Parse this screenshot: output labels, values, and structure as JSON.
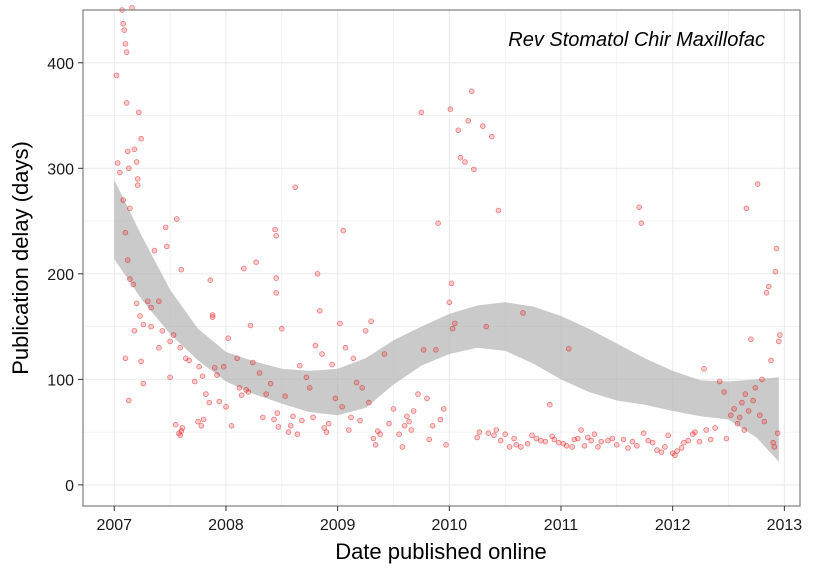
{
  "chart_data": {
    "type": "scatter",
    "title": "",
    "xlabel": "Date published online",
    "ylabel": "Publication delay (days)",
    "annotation": "Rev Stomatol Chir Maxillofac",
    "x_ticks": [
      "2007",
      "2008",
      "2009",
      "2010",
      "2011",
      "2012",
      "2013"
    ],
    "y_ticks": [
      "0",
      "100",
      "200",
      "300",
      "400"
    ],
    "xlim": [
      2006.72,
      2013.14
    ],
    "ylim": [
      -20,
      450
    ],
    "grid": true,
    "legend": "none",
    "colors": {
      "points": "#e41a1c",
      "band": "#b3b3b3",
      "panel_border": "#7f7f7f",
      "grid": "#ebebeb"
    },
    "points": [
      [
        2007.02,
        388
      ],
      [
        2007.03,
        305
      ],
      [
        2007.05,
        296
      ],
      [
        2007.07,
        450
      ],
      [
        2007.08,
        437
      ],
      [
        2007.09,
        431
      ],
      [
        2007.1,
        418
      ],
      [
        2007.11,
        410
      ],
      [
        2007.11,
        362
      ],
      [
        2007.12,
        316
      ],
      [
        2007.13,
        300
      ],
      [
        2007.14,
        262
      ],
      [
        2007.16,
        452
      ],
      [
        2007.18,
        318
      ],
      [
        2007.2,
        306
      ],
      [
        2007.21,
        290
      ],
      [
        2007.21,
        284
      ],
      [
        2007.22,
        353
      ],
      [
        2007.24,
        328
      ],
      [
        2007.08,
        270
      ],
      [
        2007.1,
        239
      ],
      [
        2007.12,
        213
      ],
      [
        2007.14,
        195
      ],
      [
        2007.17,
        190
      ],
      [
        2007.2,
        172
      ],
      [
        2007.23,
        160
      ],
      [
        2007.26,
        152
      ],
      [
        2007.3,
        174
      ],
      [
        2007.33,
        168
      ],
      [
        2007.36,
        222
      ],
      [
        2007.4,
        174
      ],
      [
        2007.43,
        146
      ],
      [
        2007.46,
        244
      ],
      [
        2007.47,
        226
      ],
      [
        2007.5,
        136
      ],
      [
        2007.53,
        142
      ],
      [
        2007.56,
        252
      ],
      [
        2007.59,
        130
      ],
      [
        2007.6,
        204
      ],
      [
        2007.64,
        120
      ],
      [
        2007.67,
        118
      ],
      [
        2007.72,
        98
      ],
      [
        2007.76,
        112
      ],
      [
        2007.79,
        103
      ],
      [
        2007.82,
        86
      ],
      [
        2007.86,
        194
      ],
      [
        2007.88,
        159
      ],
      [
        2007.9,
        111
      ],
      [
        2007.1,
        120
      ],
      [
        2007.13,
        80
      ],
      [
        2007.18,
        146
      ],
      [
        2007.24,
        117
      ],
      [
        2007.26,
        96
      ],
      [
        2007.33,
        150
      ],
      [
        2007.4,
        130
      ],
      [
        2007.5,
        102
      ],
      [
        2007.55,
        57
      ],
      [
        2007.58,
        49
      ],
      [
        2007.59,
        47
      ],
      [
        2007.6,
        51
      ],
      [
        2007.61,
        54
      ],
      [
        2007.75,
        60
      ],
      [
        2007.78,
        56
      ],
      [
        2007.8,
        62
      ],
      [
        2007.85,
        78
      ],
      [
        2007.88,
        161
      ],
      [
        2007.92,
        104
      ],
      [
        2007.94,
        79
      ],
      [
        2007.98,
        112
      ],
      [
        2008.0,
        74
      ],
      [
        2008.02,
        139
      ],
      [
        2008.05,
        56
      ],
      [
        2008.1,
        120
      ],
      [
        2008.12,
        92
      ],
      [
        2008.14,
        85
      ],
      [
        2008.16,
        205
      ],
      [
        2008.18,
        90
      ],
      [
        2008.2,
        88
      ],
      [
        2008.22,
        151
      ],
      [
        2008.24,
        116
      ],
      [
        2008.27,
        211
      ],
      [
        2008.3,
        106
      ],
      [
        2008.33,
        64
      ],
      [
        2008.36,
        86
      ],
      [
        2008.4,
        96
      ],
      [
        2008.43,
        62
      ],
      [
        2008.44,
        242
      ],
      [
        2008.45,
        236
      ],
      [
        2008.45,
        196
      ],
      [
        2008.45,
        182
      ],
      [
        2008.46,
        68
      ],
      [
        2008.47,
        55
      ],
      [
        2008.5,
        148
      ],
      [
        2008.53,
        84
      ],
      [
        2008.56,
        50
      ],
      [
        2008.58,
        56
      ],
      [
        2008.6,
        65
      ],
      [
        2008.62,
        282
      ],
      [
        2008.64,
        48
      ],
      [
        2008.66,
        113
      ],
      [
        2008.68,
        61
      ],
      [
        2008.72,
        102
      ],
      [
        2008.75,
        92
      ],
      [
        2008.78,
        64
      ],
      [
        2008.8,
        132
      ],
      [
        2008.82,
        200
      ],
      [
        2008.84,
        165
      ],
      [
        2008.86,
        124
      ],
      [
        2008.88,
        54
      ],
      [
        2008.9,
        50
      ],
      [
        2008.92,
        58
      ],
      [
        2008.95,
        114
      ],
      [
        2008.98,
        82
      ],
      [
        2009.02,
        153
      ],
      [
        2009.04,
        74
      ],
      [
        2009.05,
        241
      ],
      [
        2009.07,
        130
      ],
      [
        2009.1,
        52
      ],
      [
        2009.12,
        64
      ],
      [
        2009.14,
        120
      ],
      [
        2009.17,
        97
      ],
      [
        2009.2,
        61
      ],
      [
        2009.22,
        92
      ],
      [
        2009.25,
        146
      ],
      [
        2009.28,
        78
      ],
      [
        2009.3,
        155
      ],
      [
        2009.32,
        44
      ],
      [
        2009.34,
        38
      ],
      [
        2009.36,
        51
      ],
      [
        2009.38,
        48
      ],
      [
        2009.42,
        124
      ],
      [
        2009.46,
        58
      ],
      [
        2009.5,
        72
      ],
      [
        2009.55,
        48
      ],
      [
        2009.58,
        36
      ],
      [
        2009.6,
        56
      ],
      [
        2009.62,
        65
      ],
      [
        2009.64,
        60
      ],
      [
        2009.66,
        52
      ],
      [
        2009.68,
        70
      ],
      [
        2009.72,
        86
      ],
      [
        2009.75,
        353
      ],
      [
        2009.77,
        128
      ],
      [
        2009.8,
        82
      ],
      [
        2009.82,
        43
      ],
      [
        2009.85,
        56
      ],
      [
        2009.88,
        128
      ],
      [
        2009.9,
        248
      ],
      [
        2009.92,
        62
      ],
      [
        2009.95,
        72
      ],
      [
        2009.97,
        38
      ],
      [
        2010.0,
        173
      ],
      [
        2010.01,
        356
      ],
      [
        2010.02,
        191
      ],
      [
        2010.03,
        148
      ],
      [
        2010.05,
        153
      ],
      [
        2010.08,
        336
      ],
      [
        2010.1,
        310
      ],
      [
        2010.14,
        306
      ],
      [
        2010.17,
        345
      ],
      [
        2010.2,
        373
      ],
      [
        2010.22,
        299
      ],
      [
        2010.25,
        45
      ],
      [
        2010.27,
        50
      ],
      [
        2010.3,
        340
      ],
      [
        2010.33,
        150
      ],
      [
        2010.35,
        49
      ],
      [
        2010.38,
        330
      ],
      [
        2010.4,
        47
      ],
      [
        2010.42,
        52
      ],
      [
        2010.44,
        260
      ],
      [
        2010.46,
        42
      ],
      [
        2010.5,
        48
      ],
      [
        2010.54,
        36
      ],
      [
        2010.58,
        44
      ],
      [
        2010.6,
        38
      ],
      [
        2010.64,
        36
      ],
      [
        2010.66,
        163
      ],
      [
        2010.7,
        39
      ],
      [
        2010.74,
        47
      ],
      [
        2010.78,
        44
      ],
      [
        2010.82,
        42
      ],
      [
        2010.86,
        41
      ],
      [
        2010.9,
        76
      ],
      [
        2010.92,
        46
      ],
      [
        2010.94,
        43
      ],
      [
        2010.98,
        40
      ],
      [
        2011.02,
        39
      ],
      [
        2011.05,
        37
      ],
      [
        2011.07,
        129
      ],
      [
        2011.1,
        36
      ],
      [
        2011.12,
        43
      ],
      [
        2011.15,
        44
      ],
      [
        2011.18,
        52
      ],
      [
        2011.21,
        37
      ],
      [
        2011.24,
        45
      ],
      [
        2011.27,
        42
      ],
      [
        2011.3,
        48
      ],
      [
        2011.33,
        36
      ],
      [
        2011.36,
        41
      ],
      [
        2011.42,
        42
      ],
      [
        2011.46,
        44
      ],
      [
        2011.5,
        38
      ],
      [
        2011.56,
        43
      ],
      [
        2011.6,
        35
      ],
      [
        2011.64,
        41
      ],
      [
        2011.68,
        37
      ],
      [
        2011.7,
        263
      ],
      [
        2011.72,
        248
      ],
      [
        2011.74,
        49
      ],
      [
        2011.78,
        42
      ],
      [
        2011.82,
        40
      ],
      [
        2011.86,
        33
      ],
      [
        2011.9,
        31
      ],
      [
        2011.93,
        36
      ],
      [
        2011.96,
        47
      ],
      [
        2012.0,
        30
      ],
      [
        2012.02,
        28
      ],
      [
        2012.04,
        32
      ],
      [
        2012.08,
        35
      ],
      [
        2012.1,
        40
      ],
      [
        2012.14,
        42
      ],
      [
        2012.18,
        48
      ],
      [
        2012.2,
        50
      ],
      [
        2012.24,
        41
      ],
      [
        2012.28,
        110
      ],
      [
        2012.3,
        52
      ],
      [
        2012.34,
        43
      ],
      [
        2012.38,
        54
      ],
      [
        2012.42,
        98
      ],
      [
        2012.46,
        88
      ],
      [
        2012.48,
        44
      ],
      [
        2012.52,
        66
      ],
      [
        2012.55,
        72
      ],
      [
        2012.58,
        58
      ],
      [
        2012.6,
        64
      ],
      [
        2012.62,
        78
      ],
      [
        2012.64,
        52
      ],
      [
        2012.65,
        86
      ],
      [
        2012.66,
        262
      ],
      [
        2012.68,
        70
      ],
      [
        2012.7,
        138
      ],
      [
        2012.72,
        80
      ],
      [
        2012.74,
        92
      ],
      [
        2012.76,
        285
      ],
      [
        2012.78,
        66
      ],
      [
        2012.8,
        100
      ],
      [
        2012.82,
        60
      ],
      [
        2012.84,
        182
      ],
      [
        2012.86,
        188
      ],
      [
        2012.88,
        118
      ],
      [
        2012.9,
        40
      ],
      [
        2012.91,
        36
      ],
      [
        2012.92,
        202
      ],
      [
        2012.93,
        224
      ],
      [
        2012.94,
        49
      ],
      [
        2012.95,
        136
      ],
      [
        2012.96,
        142
      ]
    ],
    "smooth_band": {
      "x": [
        2007.0,
        2007.25,
        2007.5,
        2007.75,
        2008.0,
        2008.25,
        2008.5,
        2008.75,
        2009.0,
        2009.25,
        2009.5,
        2009.75,
        2010.0,
        2010.25,
        2010.5,
        2010.75,
        2011.0,
        2011.25,
        2011.5,
        2011.75,
        2012.0,
        2012.25,
        2012.5,
        2012.75,
        2012.95
      ],
      "upper": [
        289,
        235,
        185,
        148,
        126,
        117,
        110,
        108,
        110,
        120,
        137,
        150,
        162,
        170,
        173,
        169,
        160,
        148,
        134,
        120,
        108,
        99,
        98,
        100,
        102
      ],
      "lower": [
        214,
        175,
        143,
        118,
        98,
        86,
        77,
        69,
        66,
        73,
        95,
        113,
        124,
        130,
        127,
        115,
        100,
        88,
        80,
        76,
        70,
        65,
        62,
        45,
        22
      ]
    }
  }
}
